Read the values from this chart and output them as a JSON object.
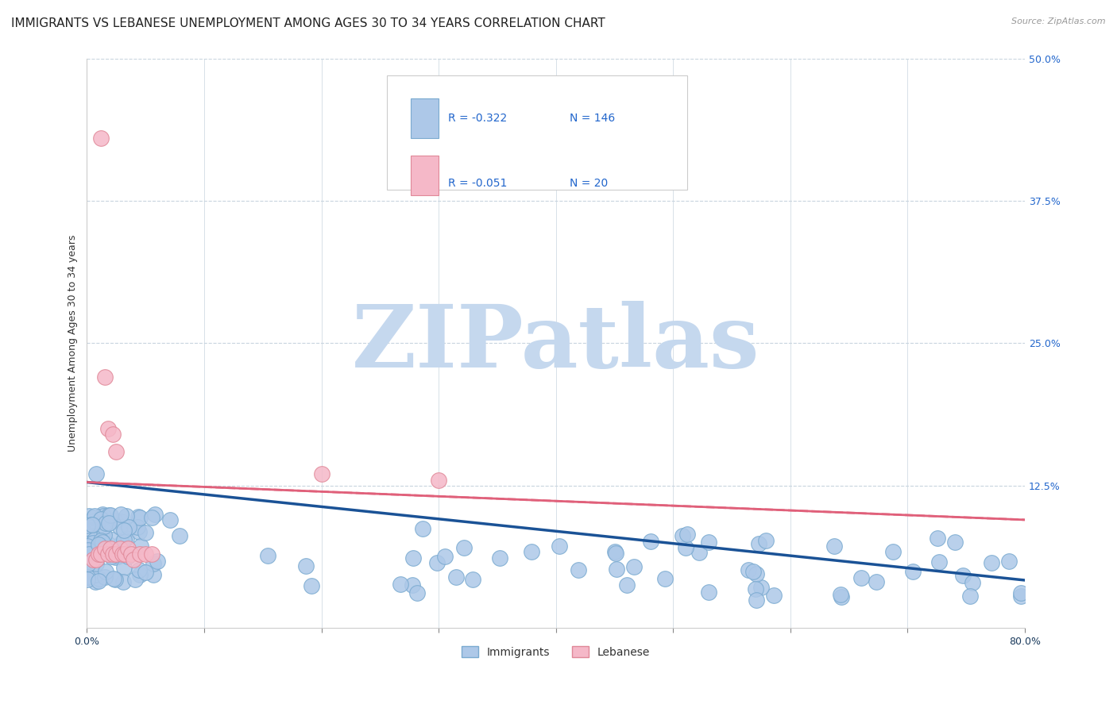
{
  "title": "IMMIGRANTS VS LEBANESE UNEMPLOYMENT AMONG AGES 30 TO 34 YEARS CORRELATION CHART",
  "source": "Source: ZipAtlas.com",
  "ylabel": "Unemployment Among Ages 30 to 34 years",
  "xlim": [
    0.0,
    0.8
  ],
  "ylim": [
    0.0,
    0.5
  ],
  "xtick_labels": [
    "0.0%",
    "",
    "",
    "",
    "",
    "",
    "",
    "",
    "80.0%"
  ],
  "xtick_positions": [
    0.0,
    0.1,
    0.2,
    0.3,
    0.4,
    0.5,
    0.6,
    0.7,
    0.8
  ],
  "ytick_labels_right": [
    "12.5%",
    "25.0%",
    "37.5%",
    "50.0%"
  ],
  "ytick_positions_right": [
    0.125,
    0.25,
    0.375,
    0.5
  ],
  "immigrants_R": -0.322,
  "immigrants_N": 146,
  "lebanese_R": -0.051,
  "lebanese_N": 20,
  "immigrants_color": "#adc8e8",
  "immigrants_edge_color": "#7aaad0",
  "immigrants_line_color": "#1a5296",
  "lebanese_color": "#f5b8c8",
  "lebanese_edge_color": "#e08898",
  "lebanese_line_color": "#e0607a",
  "watermark": "ZIPatlas",
  "watermark_color": "#c5d8ee",
  "background_color": "#ffffff",
  "grid_color": "#c8d4de",
  "title_fontsize": 11,
  "axis_label_fontsize": 9,
  "tick_fontsize": 9,
  "imm_line_start_y": 0.128,
  "imm_line_end_y": 0.042,
  "leb_line_start_y": 0.128,
  "leb_line_end_y": 0.095
}
